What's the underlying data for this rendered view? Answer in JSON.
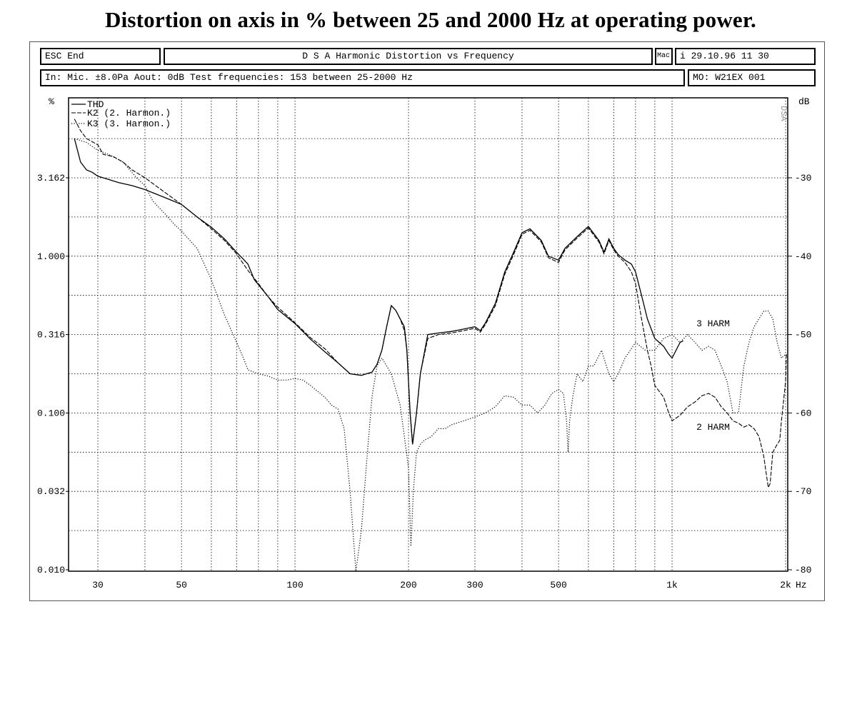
{
  "page_title": "Distortion on axis in % between 25 and 2000 Hz at operating power.",
  "header": {
    "esc_label": "ESC End",
    "title": "D S A   Harmonic Distortion vs Frequency",
    "mac_label": "Mac",
    "info_label": "i 29.10.96  11 30",
    "input_info": "In: Mic. ±8.0Pa  Aout: 0dB    Test frequencies: 153 between 25-2000 Hz",
    "model_label": "MO: W21EX 001"
  },
  "chart_data": {
    "type": "line",
    "title": "",
    "y_left_label": "%",
    "y_right_label": "dB",
    "x_unit": "Hz",
    "x_scale": "log",
    "xlim": [
      26,
      2000
    ],
    "ylim_db": [
      -80,
      -20
    ],
    "x_ticks": [
      {
        "value": 30,
        "label": "30"
      },
      {
        "value": 50,
        "label": "50"
      },
      {
        "value": 100,
        "label": "100"
      },
      {
        "value": 200,
        "label": "200"
      },
      {
        "value": 300,
        "label": "300"
      },
      {
        "value": 500,
        "label": "500"
      },
      {
        "value": 1000,
        "label": "1k"
      },
      {
        "value": 2000,
        "label": "2k"
      }
    ],
    "y_left_ticks": [
      {
        "db": -30,
        "label": "3.162"
      },
      {
        "db": -40,
        "label": "1.000"
      },
      {
        "db": -50,
        "label": "0.316"
      },
      {
        "db": -60,
        "label": "0.100"
      },
      {
        "db": -70,
        "label": "0.032"
      },
      {
        "db": -80,
        "label": "0.010"
      }
    ],
    "y_right_ticks": [
      {
        "db": -30,
        "label": "-30"
      },
      {
        "db": -40,
        "label": "-40"
      },
      {
        "db": -50,
        "label": "-50"
      },
      {
        "db": -60,
        "label": "-60"
      },
      {
        "db": -70,
        "label": "-70"
      },
      {
        "db": -80,
        "label": "-80"
      }
    ],
    "grid": true,
    "legend_position": "top-left",
    "series": [
      {
        "name": "THD",
        "style": "solid",
        "points": [
          [
            26,
            -25
          ],
          [
            27,
            -28
          ],
          [
            28,
            -29
          ],
          [
            29,
            -29.3
          ],
          [
            30,
            -29.8
          ],
          [
            32,
            -30.2
          ],
          [
            34,
            -30.6
          ],
          [
            37,
            -31
          ],
          [
            40,
            -31.5
          ],
          [
            45,
            -32.5
          ],
          [
            50,
            -33.4
          ],
          [
            55,
            -35
          ],
          [
            60,
            -36.3
          ],
          [
            65,
            -37.8
          ],
          [
            70,
            -39.5
          ],
          [
            73,
            -40.4
          ],
          [
            75,
            -41
          ],
          [
            78,
            -43
          ],
          [
            85,
            -45.2
          ],
          [
            90,
            -46.8
          ],
          [
            100,
            -48.6
          ],
          [
            110,
            -50.6
          ],
          [
            120,
            -52.2
          ],
          [
            130,
            -53.6
          ],
          [
            140,
            -55
          ],
          [
            150,
            -55.2
          ],
          [
            160,
            -54.8
          ],
          [
            165,
            -53.8
          ],
          [
            170,
            -52
          ],
          [
            175,
            -49
          ],
          [
            180,
            -46.3
          ],
          [
            185,
            -46.9
          ],
          [
            190,
            -48
          ],
          [
            195,
            -49
          ],
          [
            198,
            -52
          ],
          [
            202,
            -60
          ],
          [
            205,
            -64
          ],
          [
            210,
            -60
          ],
          [
            215,
            -55
          ],
          [
            225,
            -50
          ],
          [
            240,
            -49.8
          ],
          [
            260,
            -49.6
          ],
          [
            280,
            -49.3
          ],
          [
            300,
            -49
          ],
          [
            310,
            -49.5
          ],
          [
            320,
            -48.5
          ],
          [
            340,
            -46
          ],
          [
            360,
            -42
          ],
          [
            380,
            -39.5
          ],
          [
            400,
            -37
          ],
          [
            420,
            -36.5
          ],
          [
            450,
            -38
          ],
          [
            470,
            -40
          ],
          [
            500,
            -40.5
          ],
          [
            520,
            -39
          ],
          [
            560,
            -37.5
          ],
          [
            600,
            -36.2
          ],
          [
            640,
            -38
          ],
          [
            660,
            -39.5
          ],
          [
            680,
            -37.8
          ],
          [
            700,
            -39
          ],
          [
            720,
            -39.8
          ],
          [
            750,
            -40.5
          ],
          [
            780,
            -41
          ],
          [
            800,
            -42
          ],
          [
            830,
            -45
          ],
          [
            860,
            -48
          ],
          [
            900,
            -50.5
          ],
          [
            950,
            -51.5
          ],
          [
            980,
            -52.5
          ],
          [
            1000,
            -53
          ],
          [
            1050,
            -51
          ],
          [
            1070,
            -50.8
          ]
        ]
      },
      {
        "name": "K2 (2. Harmon.)",
        "style": "dashed",
        "points": [
          [
            26,
            -22.5
          ],
          [
            27,
            -24
          ],
          [
            28,
            -25
          ],
          [
            30,
            -25.8
          ],
          [
            31,
            -27
          ],
          [
            33,
            -27.3
          ],
          [
            35,
            -28
          ],
          [
            37,
            -29
          ],
          [
            40,
            -30
          ],
          [
            45,
            -31.8
          ],
          [
            50,
            -33.4
          ],
          [
            55,
            -35
          ],
          [
            60,
            -36.5
          ],
          [
            65,
            -38
          ],
          [
            70,
            -39.7
          ],
          [
            73,
            -41
          ],
          [
            75,
            -41.8
          ],
          [
            80,
            -43.5
          ],
          [
            85,
            -45.2
          ],
          [
            90,
            -46.5
          ],
          [
            100,
            -48.5
          ],
          [
            110,
            -50.4
          ],
          [
            120,
            -51.8
          ],
          [
            130,
            -53.6
          ],
          [
            140,
            -55
          ],
          [
            150,
            -55.2
          ],
          [
            160,
            -54.8
          ],
          [
            165,
            -53.8
          ],
          [
            170,
            -52
          ],
          [
            175,
            -49
          ],
          [
            180,
            -46.3
          ],
          [
            185,
            -46.9
          ],
          [
            190,
            -48
          ],
          [
            195,
            -49.5
          ],
          [
            198,
            -52
          ],
          [
            202,
            -60
          ],
          [
            205,
            -64
          ],
          [
            210,
            -60
          ],
          [
            215,
            -55
          ],
          [
            225,
            -50.5
          ],
          [
            240,
            -50
          ],
          [
            260,
            -49.8
          ],
          [
            280,
            -49.5
          ],
          [
            300,
            -49.2
          ],
          [
            310,
            -49.7
          ],
          [
            320,
            -48.7
          ],
          [
            340,
            -46.3
          ],
          [
            360,
            -42.3
          ],
          [
            380,
            -39.8
          ],
          [
            400,
            -37.2
          ],
          [
            420,
            -36.7
          ],
          [
            450,
            -38.2
          ],
          [
            470,
            -40.2
          ],
          [
            500,
            -40.8
          ],
          [
            520,
            -39.2
          ],
          [
            560,
            -37.7
          ],
          [
            600,
            -36.4
          ],
          [
            640,
            -38.2
          ],
          [
            660,
            -39.7
          ],
          [
            680,
            -38
          ],
          [
            700,
            -39.2
          ],
          [
            720,
            -40
          ],
          [
            750,
            -40.8
          ],
          [
            780,
            -42
          ],
          [
            800,
            -43.5
          ],
          [
            830,
            -48
          ],
          [
            860,
            -52
          ],
          [
            880,
            -54
          ],
          [
            900,
            -56.5
          ],
          [
            950,
            -58
          ],
          [
            980,
            -60
          ],
          [
            1000,
            -61
          ],
          [
            1050,
            -60.3
          ],
          [
            1100,
            -59.2
          ],
          [
            1150,
            -58.6
          ],
          [
            1200,
            -57.8
          ],
          [
            1250,
            -57.5
          ],
          [
            1300,
            -58
          ],
          [
            1350,
            -59.2
          ],
          [
            1400,
            -60
          ],
          [
            1450,
            -61
          ],
          [
            1500,
            -61.3
          ],
          [
            1550,
            -61.8
          ],
          [
            1600,
            -61.5
          ],
          [
            1650,
            -62
          ],
          [
            1700,
            -63
          ],
          [
            1750,
            -65.5
          ],
          [
            1780,
            -68
          ],
          [
            1800,
            -69.5
          ],
          [
            1820,
            -69
          ],
          [
            1850,
            -65
          ],
          [
            1900,
            -64
          ],
          [
            1930,
            -63.5
          ],
          [
            1950,
            -61
          ],
          [
            1980,
            -58
          ],
          [
            2000,
            -56
          ],
          [
            2010,
            -52.5
          ]
        ]
      },
      {
        "name": "K3 (3. Harmon.)",
        "style": "dotted",
        "points": [
          [
            26,
            -25
          ],
          [
            28,
            -25.5
          ],
          [
            30,
            -26.5
          ],
          [
            32,
            -27
          ],
          [
            35,
            -28
          ],
          [
            38,
            -30
          ],
          [
            40,
            -31
          ],
          [
            42,
            -33
          ],
          [
            45,
            -34.5
          ],
          [
            48,
            -36
          ],
          [
            50,
            -36.8
          ],
          [
            55,
            -39
          ],
          [
            60,
            -43
          ],
          [
            65,
            -47.5
          ],
          [
            70,
            -51
          ],
          [
            73,
            -53
          ],
          [
            75,
            -54.5
          ],
          [
            80,
            -55
          ],
          [
            85,
            -55.3
          ],
          [
            90,
            -55.8
          ],
          [
            95,
            -55.8
          ],
          [
            100,
            -55.6
          ],
          [
            105,
            -55.8
          ],
          [
            110,
            -56.5
          ],
          [
            120,
            -58
          ],
          [
            125,
            -59
          ],
          [
            130,
            -59.5
          ],
          [
            135,
            -62
          ],
          [
            140,
            -70
          ],
          [
            145,
            -82
          ],
          [
            150,
            -75
          ],
          [
            155,
            -66
          ],
          [
            160,
            -58
          ],
          [
            165,
            -54
          ],
          [
            170,
            -53
          ],
          [
            175,
            -54
          ],
          [
            180,
            -55
          ],
          [
            185,
            -57
          ],
          [
            190,
            -59
          ],
          [
            195,
            -63
          ],
          [
            200,
            -67
          ],
          [
            203,
            -77
          ],
          [
            206,
            -70
          ],
          [
            210,
            -65
          ],
          [
            215,
            -64
          ],
          [
            220,
            -63.5
          ],
          [
            230,
            -63
          ],
          [
            240,
            -62
          ],
          [
            250,
            -62
          ],
          [
            260,
            -61.5
          ],
          [
            280,
            -61
          ],
          [
            300,
            -60.5
          ],
          [
            320,
            -60
          ],
          [
            340,
            -59.2
          ],
          [
            360,
            -57.8
          ],
          [
            380,
            -58
          ],
          [
            400,
            -59
          ],
          [
            420,
            -59
          ],
          [
            440,
            -60
          ],
          [
            460,
            -59
          ],
          [
            480,
            -57.5
          ],
          [
            500,
            -57
          ],
          [
            515,
            -57.5
          ],
          [
            525,
            -61
          ],
          [
            530,
            -65
          ],
          [
            535,
            -61
          ],
          [
            545,
            -58
          ],
          [
            560,
            -55
          ],
          [
            580,
            -56
          ],
          [
            600,
            -54
          ],
          [
            620,
            -54
          ],
          [
            650,
            -52
          ],
          [
            680,
            -55
          ],
          [
            700,
            -56
          ],
          [
            720,
            -55
          ],
          [
            750,
            -53
          ],
          [
            800,
            -51
          ],
          [
            850,
            -52
          ],
          [
            900,
            -52
          ],
          [
            950,
            -50.5
          ],
          [
            1000,
            -50
          ],
          [
            1050,
            -51
          ],
          [
            1100,
            -50
          ],
          [
            1150,
            -51
          ],
          [
            1200,
            -52
          ],
          [
            1250,
            -51.5
          ],
          [
            1300,
            -52
          ],
          [
            1350,
            -54
          ],
          [
            1400,
            -56
          ],
          [
            1450,
            -60
          ],
          [
            1500,
            -60
          ],
          [
            1550,
            -54
          ],
          [
            1600,
            -51
          ],
          [
            1650,
            -49
          ],
          [
            1700,
            -48
          ],
          [
            1750,
            -47
          ],
          [
            1800,
            -47
          ],
          [
            1850,
            -48
          ],
          [
            1900,
            -51
          ],
          [
            1950,
            -53
          ],
          [
            2000,
            -52.5
          ]
        ]
      }
    ],
    "annotations": [
      {
        "text": "3 HARM",
        "x": 1160,
        "db": -48.6
      },
      {
        "text": "2 HARM",
        "x": 1160,
        "db": -61.8
      }
    ],
    "watermark": "DSA"
  }
}
